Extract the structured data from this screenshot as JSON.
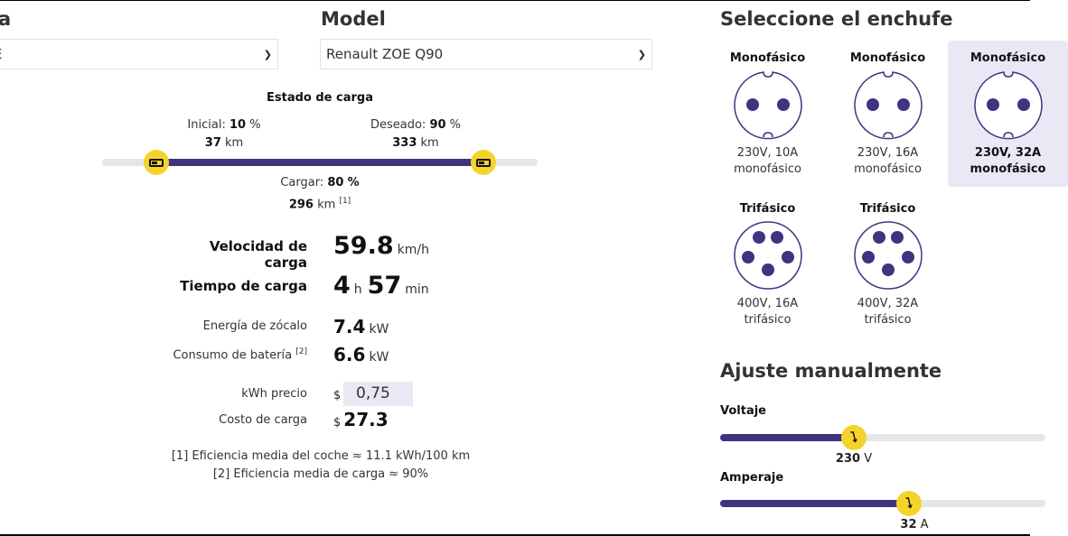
{
  "brand": {
    "label_fragment": "a",
    "value_fragment": "E"
  },
  "model": {
    "label": "Model",
    "value": "Renault ZOE Q90"
  },
  "soc": {
    "title": "Estado de carga",
    "initial_label": "Inicial:",
    "initial_pct": "10",
    "initial_km": "37",
    "desired_label": "Deseado:",
    "desired_pct": "90",
    "desired_km": "333",
    "charge_label": "Cargar:",
    "charge_pct": "80",
    "charge_km": "296",
    "pct_unit": "%",
    "km_unit": "km",
    "note_ref": "[1]",
    "range_start_pct": 10,
    "range_end_pct": 90
  },
  "results": {
    "speed_label": "Velocidad de carga",
    "speed_value": "59.8",
    "speed_unit": "km/h",
    "time_label": "Tiempo de carga",
    "time_h": "4",
    "time_h_unit": "h",
    "time_min": "57",
    "time_min_unit": "min",
    "socket_power_label": "Energía de zócalo",
    "socket_power_value": "7.4",
    "socket_power_unit": "kW",
    "battery_label": "Consumo de batería",
    "battery_ref": "[2]",
    "battery_value": "6.6",
    "battery_unit": "kW",
    "price_label": "kWh precio",
    "currency": "$",
    "price_value": "0,75",
    "cost_label": "Costo de carga",
    "cost_value": "27.3"
  },
  "notes": [
    "[1] Eficiencia media del coche ≈ 11.1 kWh/100 km",
    "[2] Eficiencia media de carga ≈ 90%"
  ],
  "plugs": {
    "title": "Seleccione el enchufe",
    "items": [
      {
        "type": "Monofásico",
        "spec": "230V, 10A",
        "phase": "monofásico"
      },
      {
        "type": "Monofásico",
        "spec": "230V, 16A",
        "phase": "monofásico"
      },
      {
        "type": "Monofásico",
        "spec": "230V, 32A",
        "phase": "monofásico",
        "selected": true
      },
      {
        "type": "Trifásico",
        "spec": "400V, 16A",
        "phase": "trifásico"
      },
      {
        "type": "Trifásico",
        "spec": "400V, 32A",
        "phase": "trifásico"
      }
    ]
  },
  "manual": {
    "title": "Ajuste manualmente",
    "voltage_label": "Voltaje",
    "voltage_value": "230",
    "voltage_unit": "V",
    "amperage_label": "Amperaje",
    "amperage_value": "32",
    "amperage_unit": "A"
  },
  "colors": {
    "accent": "#3d3580",
    "knob": "#f6d32b",
    "selected_bg": "#e9e8f5"
  }
}
